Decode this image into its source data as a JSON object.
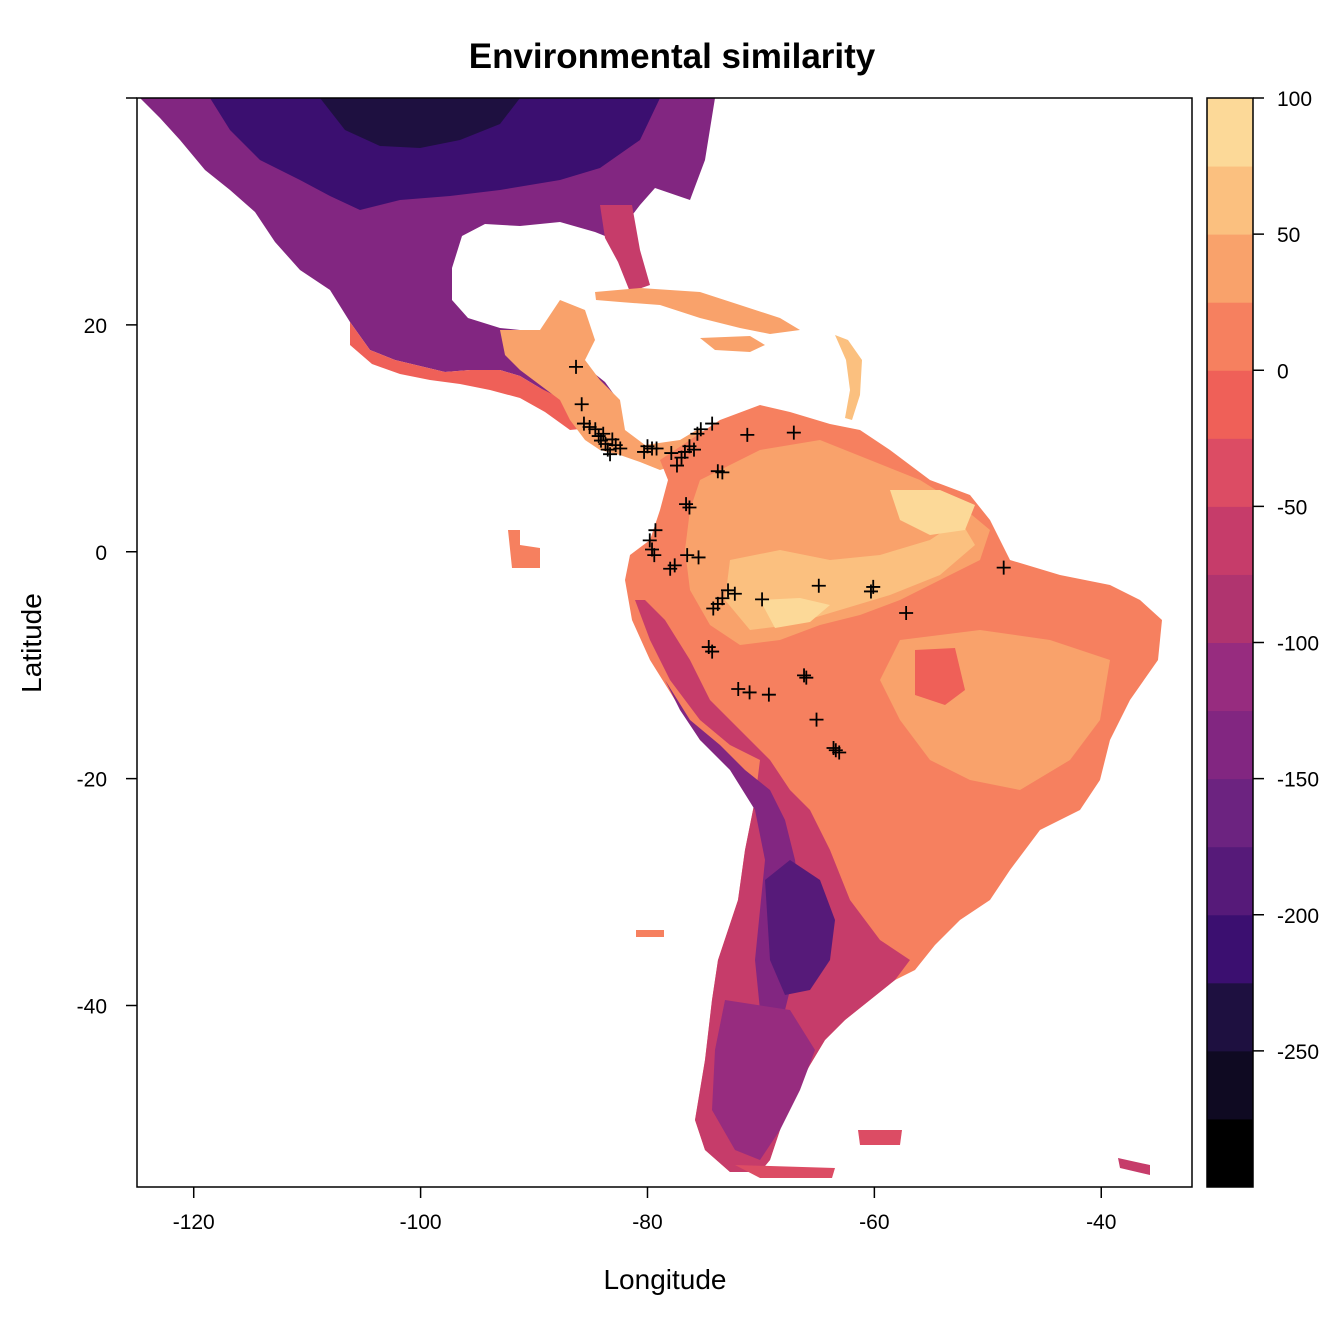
{
  "title": "Environmental similarity",
  "xlabel": "Longitude",
  "ylabel": "Latitude",
  "x_ticks": [
    -120,
    -100,
    -80,
    -60,
    -40
  ],
  "y_ticks": [
    20,
    0,
    -20,
    -40
  ],
  "xlim": [
    -125,
    -32
  ],
  "ylim": [
    -56,
    40
  ],
  "colorbar": {
    "ticks": [
      100,
      50,
      0,
      -50,
      -100,
      -150,
      -200,
      -250
    ],
    "range": [
      -300,
      100
    ],
    "breaks": [
      -300,
      -275,
      -250,
      -225,
      -200,
      -175,
      -150,
      -125,
      -100,
      -75,
      -50,
      -25,
      0,
      25,
      50,
      75,
      100
    ],
    "colors": [
      "#000000",
      "#0f0a22",
      "#1e1040",
      "#3b0f70",
      "#561a79",
      "#6c2380",
      "#822681",
      "#972c7f",
      "#b0346f",
      "#c63c6a",
      "#dc4c64",
      "#ef6058",
      "#f6805f",
      "#f9a26b",
      "#fbc07f",
      "#fcd998",
      "#fdfdc3"
    ]
  },
  "chart_data": {
    "type": "heatmap",
    "title": "Environmental similarity",
    "xlabel": "Longitude",
    "ylabel": "Latitude",
    "xlim": [
      -125,
      -32
    ],
    "ylim": [
      -56,
      40
    ],
    "legend": "right colorbar",
    "occurrence_points": [
      {
        "x": -86.3,
        "y": 16.3
      },
      {
        "x": -85.8,
        "y": 13.0
      },
      {
        "x": -85.6,
        "y": 11.3
      },
      {
        "x": -85.1,
        "y": 11.0
      },
      {
        "x": -84.6,
        "y": 10.8
      },
      {
        "x": -84.3,
        "y": 10.2
      },
      {
        "x": -84.1,
        "y": 9.8
      },
      {
        "x": -83.9,
        "y": 10.4
      },
      {
        "x": -83.7,
        "y": 9.5
      },
      {
        "x": -83.5,
        "y": 9.0
      },
      {
        "x": -83.3,
        "y": 8.6
      },
      {
        "x": -83.1,
        "y": 9.9
      },
      {
        "x": -82.8,
        "y": 9.4
      },
      {
        "x": -82.4,
        "y": 9.1
      },
      {
        "x": -80.3,
        "y": 8.8
      },
      {
        "x": -80.0,
        "y": 9.3
      },
      {
        "x": -79.6,
        "y": 9.1
      },
      {
        "x": -79.2,
        "y": 9.1
      },
      {
        "x": -77.9,
        "y": 8.7
      },
      {
        "x": -77.4,
        "y": 7.6
      },
      {
        "x": -77.0,
        "y": 8.3
      },
      {
        "x": -76.7,
        "y": 8.8
      },
      {
        "x": -76.3,
        "y": 9.3
      },
      {
        "x": -75.9,
        "y": 9.0
      },
      {
        "x": -75.6,
        "y": 10.4
      },
      {
        "x": -75.3,
        "y": 10.8
      },
      {
        "x": -74.3,
        "y": 11.3
      },
      {
        "x": -73.8,
        "y": 7.1
      },
      {
        "x": -73.4,
        "y": 7.0
      },
      {
        "x": -71.2,
        "y": 10.3
      },
      {
        "x": -67.1,
        "y": 10.5
      },
      {
        "x": -76.6,
        "y": 4.2
      },
      {
        "x": -76.3,
        "y": 3.9
      },
      {
        "x": -79.3,
        "y": 1.9
      },
      {
        "x": -79.8,
        "y": 1.0
      },
      {
        "x": -79.6,
        "y": 0.2
      },
      {
        "x": -79.4,
        "y": -0.3
      },
      {
        "x": -78.0,
        "y": -1.5
      },
      {
        "x": -77.6,
        "y": -1.2
      },
      {
        "x": -76.5,
        "y": -0.3
      },
      {
        "x": -75.5,
        "y": -0.5
      },
      {
        "x": -72.9,
        "y": -3.4
      },
      {
        "x": -72.3,
        "y": -3.7
      },
      {
        "x": -73.4,
        "y": -4.1
      },
      {
        "x": -73.8,
        "y": -4.6
      },
      {
        "x": -74.2,
        "y": -5.0
      },
      {
        "x": -69.9,
        "y": -4.2
      },
      {
        "x": -64.9,
        "y": -3.0
      },
      {
        "x": -60.1,
        "y": -3.1
      },
      {
        "x": -60.3,
        "y": -3.5
      },
      {
        "x": -57.2,
        "y": -5.4
      },
      {
        "x": -48.6,
        "y": -1.4
      },
      {
        "x": -74.6,
        "y": -8.4
      },
      {
        "x": -74.3,
        "y": -8.8
      },
      {
        "x": -72.0,
        "y": -12.1
      },
      {
        "x": -71.0,
        "y": -12.4
      },
      {
        "x": -69.3,
        "y": -12.6
      },
      {
        "x": -66.2,
        "y": -10.9
      },
      {
        "x": -66.0,
        "y": -11.1
      },
      {
        "x": -65.1,
        "y": -14.8
      },
      {
        "x": -63.6,
        "y": -17.3
      },
      {
        "x": -63.1,
        "y": -17.7
      },
      {
        "x": -63.4,
        "y": -17.5
      }
    ]
  }
}
